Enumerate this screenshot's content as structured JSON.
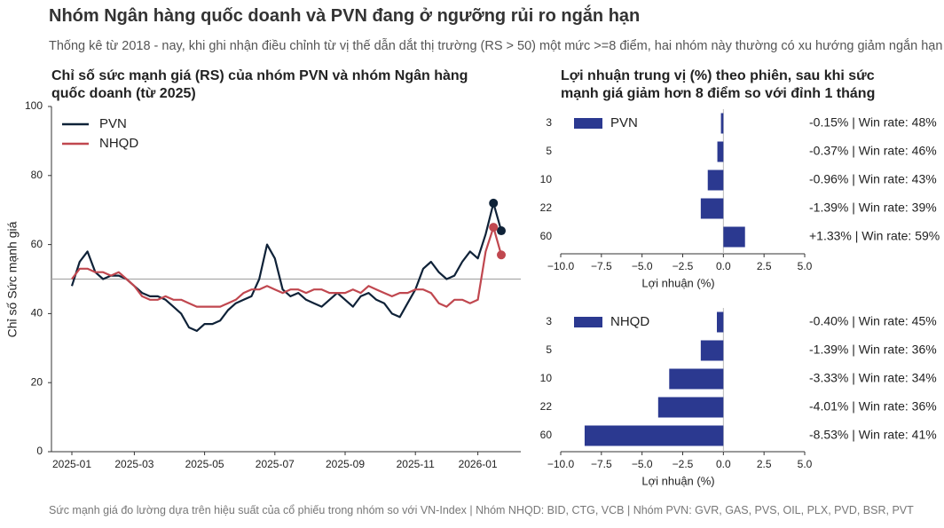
{
  "header": {
    "title": "Nhóm Ngân hàng quốc doanh và PVN đang ở ngưỡng rủi ro ngắn hạn",
    "subtitle": "Thống kê từ 2018 - nay, khi ghi nhận điều chỉnh từ vị thế dẫn dắt thị trường (RS > 50) một mức >=8 điểm, hai nhóm này thường có xu hướng giảm ngắn hạn"
  },
  "footer": "Sức mạnh giá đo lường dựa trên hiệu suất của cổ phiếu trong nhóm so với VN-Index | Nhóm NHQD: BID, CTG, VCB | Nhóm PVN: GVR, GAS, PVS, OIL, PLX, PVD, BSR, PVT",
  "chart_data": [
    {
      "type": "line",
      "title": "Chỉ số sức mạnh giá (RS) của nhóm PVN và nhóm Ngân hàng quốc doanh (từ 2025)",
      "ylabel": "Chỉ số Sức mạnh giá",
      "categories": [
        "2025-01",
        null,
        null,
        null,
        null,
        null,
        null,
        null,
        "2025-03",
        null,
        null,
        null,
        null,
        null,
        null,
        null,
        null,
        "2025-05",
        null,
        null,
        null,
        null,
        null,
        null,
        null,
        null,
        "2025-07",
        null,
        null,
        null,
        null,
        null,
        null,
        null,
        null,
        "2025-09",
        null,
        null,
        null,
        null,
        null,
        null,
        null,
        null,
        "2025-11",
        null,
        null,
        null,
        null,
        null,
        null,
        null,
        "2026-01",
        null,
        null,
        null
      ],
      "series": [
        {
          "name": "PVN",
          "color": "#0f2238",
          "values": [
            48,
            55,
            58,
            52,
            50,
            51,
            51,
            50,
            48,
            46,
            45,
            45,
            44,
            42,
            40,
            36,
            35,
            37,
            37,
            38,
            41,
            43,
            44,
            45,
            50,
            60,
            56,
            47,
            45,
            46,
            44,
            43,
            42,
            44,
            46,
            44,
            42,
            45,
            46,
            44,
            43,
            40,
            39,
            43,
            47,
            53,
            55,
            52,
            50,
            51,
            55,
            58,
            56,
            63,
            72,
            64
          ]
        },
        {
          "name": "NHQD",
          "color": "#c0474f",
          "values": [
            50,
            53,
            53,
            52,
            52,
            51,
            52,
            50,
            48,
            45,
            44,
            44,
            45,
            44,
            44,
            43,
            42,
            42,
            42,
            42,
            43,
            44,
            46,
            47,
            47,
            48,
            47,
            46,
            47,
            47,
            46,
            47,
            47,
            46,
            46,
            46,
            47,
            46,
            48,
            47,
            46,
            45,
            46,
            46,
            47,
            47,
            46,
            43,
            42,
            44,
            44,
            43,
            44,
            58,
            65,
            57
          ]
        }
      ],
      "reference_line": 50,
      "ylim": [
        0,
        100
      ],
      "yticks": [
        0,
        20,
        40,
        60,
        80,
        100
      ],
      "legend": "upper left",
      "grid": false
    },
    {
      "type": "hbar",
      "title": "Lợi nhuận trung vị (%) theo phiên, sau khi sức mạnh giá giảm hơn 8 điểm so với đỉnh 1 tháng",
      "xlabel": "Lợi nhuận (%)",
      "categories": [
        "3",
        "5",
        "10",
        "22",
        "60"
      ],
      "series": [
        {
          "name": "PVN",
          "color": "#2b3990",
          "values": [
            -0.15,
            -0.37,
            -0.96,
            -1.39,
            1.33
          ],
          "value_labels": [
            "-0.15% | Win rate: 48%",
            "-0.37% | Win rate: 46%",
            "-0.96% | Win rate: 43%",
            "-1.39% | Win rate: 39%",
            "+1.33% | Win rate: 59%"
          ]
        }
      ],
      "xlim": [
        -10,
        5
      ],
      "xticks": [
        {
          "value": -10,
          "label": "−10.0"
        },
        {
          "value": -7.5,
          "label": "−7.5"
        },
        {
          "value": -5,
          "label": "−5.0"
        },
        {
          "value": -2.5,
          "label": "−2.5"
        },
        {
          "value": 0,
          "label": "0.0"
        },
        {
          "value": 2.5,
          "label": "2.5"
        },
        {
          "value": 5,
          "label": "5.0"
        }
      ],
      "legend": "upper left"
    },
    {
      "type": "hbar",
      "xlabel": "Lợi nhuận (%)",
      "categories": [
        "3",
        "5",
        "10",
        "22",
        "60"
      ],
      "series": [
        {
          "name": "NHQD",
          "color": "#2b3990",
          "values": [
            -0.4,
            -1.39,
            -3.33,
            -4.01,
            -8.53
          ],
          "value_labels": [
            "-0.40% | Win rate: 45%",
            "-1.39% | Win rate: 36%",
            "-3.33% | Win rate: 34%",
            "-4.01% | Win rate: 36%",
            "-8.53% | Win rate: 41%"
          ]
        }
      ],
      "xlim": [
        -10,
        5
      ],
      "xticks": [
        {
          "value": -10,
          "label": "−10.0"
        },
        {
          "value": -7.5,
          "label": "−7.5"
        },
        {
          "value": -5,
          "label": "−5.0"
        },
        {
          "value": -2.5,
          "label": "−2.5"
        },
        {
          "value": 0,
          "label": "0.0"
        },
        {
          "value": 2.5,
          "label": "2.5"
        },
        {
          "value": 5,
          "label": "5.0"
        }
      ],
      "legend": "upper left"
    }
  ]
}
